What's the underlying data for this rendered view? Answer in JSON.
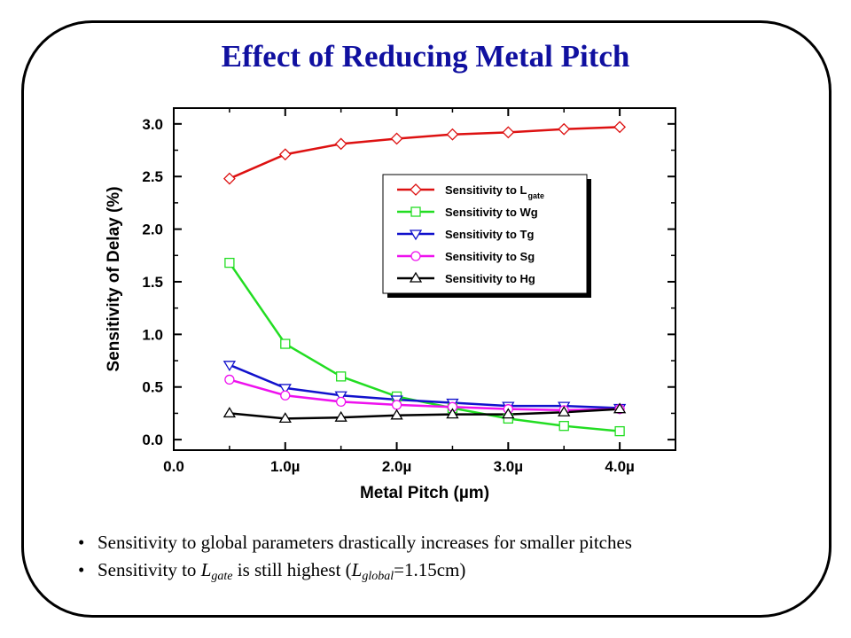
{
  "slide": {
    "title": "Effect of Reducing Metal Pitch",
    "bullets": [
      {
        "text": "Sensitivity to global parameters drastically increases for smaller pitches"
      },
      {
        "pre": "Sensitivity to ",
        "L": "L",
        "sub": "gate",
        "mid": " is still highest (",
        "L2": "L",
        "sub2": "global",
        "post": "=1.15cm)"
      }
    ],
    "bullet_glyph": "•"
  },
  "chart_data": {
    "type": "line",
    "xlabel": "Metal Pitch (µm)",
    "ylabel": "Sensitivity of Delay (%)",
    "xlim": [
      0.0,
      4.5
    ],
    "ylim": [
      -0.1,
      3.15
    ],
    "x_ticks": [
      0.0,
      1.0,
      2.0,
      3.0,
      4.0
    ],
    "x_tick_labels": [
      "0.0",
      "1.0µ",
      "2.0µ",
      "3.0µ",
      "4.0µ"
    ],
    "y_ticks": [
      0.0,
      0.5,
      1.0,
      1.5,
      2.0,
      2.5,
      3.0
    ],
    "y_tick_labels": [
      "0.0",
      "0.5",
      "1.0",
      "1.5",
      "2.0",
      "2.5",
      "3.0"
    ],
    "grid": false,
    "legend_position": "upper-right",
    "x": [
      0.5,
      1.0,
      1.5,
      2.0,
      2.5,
      3.0,
      3.5,
      4.0
    ],
    "series": [
      {
        "name": "Sensitivity to L",
        "name_sub": "gate",
        "color": "#dd1111",
        "marker": "diamond",
        "values": [
          2.48,
          2.71,
          2.81,
          2.86,
          2.9,
          2.92,
          2.95,
          2.97
        ]
      },
      {
        "name": "Sensitivity to Wg",
        "color": "#22dd22",
        "marker": "square",
        "values": [
          1.68,
          0.91,
          0.6,
          0.41,
          0.3,
          0.2,
          0.13,
          0.08
        ]
      },
      {
        "name": "Sensitivity to Tg",
        "color": "#1111cc",
        "marker": "triangle-down",
        "values": [
          0.71,
          0.49,
          0.42,
          0.38,
          0.35,
          0.32,
          0.32,
          0.3
        ]
      },
      {
        "name": "Sensitivity to Sg",
        "color": "#ee11ee",
        "marker": "circle",
        "values": [
          0.57,
          0.42,
          0.36,
          0.33,
          0.31,
          0.29,
          0.28,
          0.29
        ]
      },
      {
        "name": "Sensitivity to Hg",
        "color": "#000000",
        "marker": "triangle-up",
        "values": [
          0.25,
          0.2,
          0.21,
          0.23,
          0.24,
          0.24,
          0.26,
          0.29
        ]
      }
    ]
  }
}
